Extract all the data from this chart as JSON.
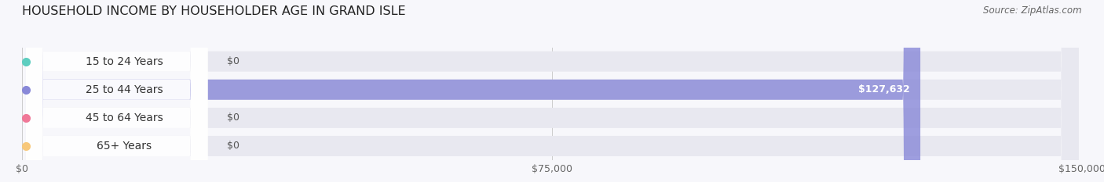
{
  "title": "HOUSEHOLD INCOME BY HOUSEHOLDER AGE IN GRAND ISLE",
  "source": "Source: ZipAtlas.com",
  "categories": [
    "15 to 24 Years",
    "25 to 44 Years",
    "45 to 64 Years",
    "65+ Years"
  ],
  "values": [
    0,
    127632,
    0,
    0
  ],
  "bar_colors": [
    "#5ecec0",
    "#8888d8",
    "#f07898",
    "#f8c87a"
  ],
  "bar_bg_color": "#e8e8f0",
  "value_labels": [
    "$0",
    "$127,632",
    "$0",
    "$0"
  ],
  "xlim": [
    0,
    150000
  ],
  "xticks": [
    0,
    75000,
    150000
  ],
  "xtick_labels": [
    "$0",
    "$75,000",
    "$150,000"
  ],
  "bg_color": "#f7f7fb",
  "title_fontsize": 11.5,
  "source_fontsize": 8.5,
  "tick_fontsize": 9,
  "bar_label_fontsize": 10,
  "value_fontsize": 9
}
